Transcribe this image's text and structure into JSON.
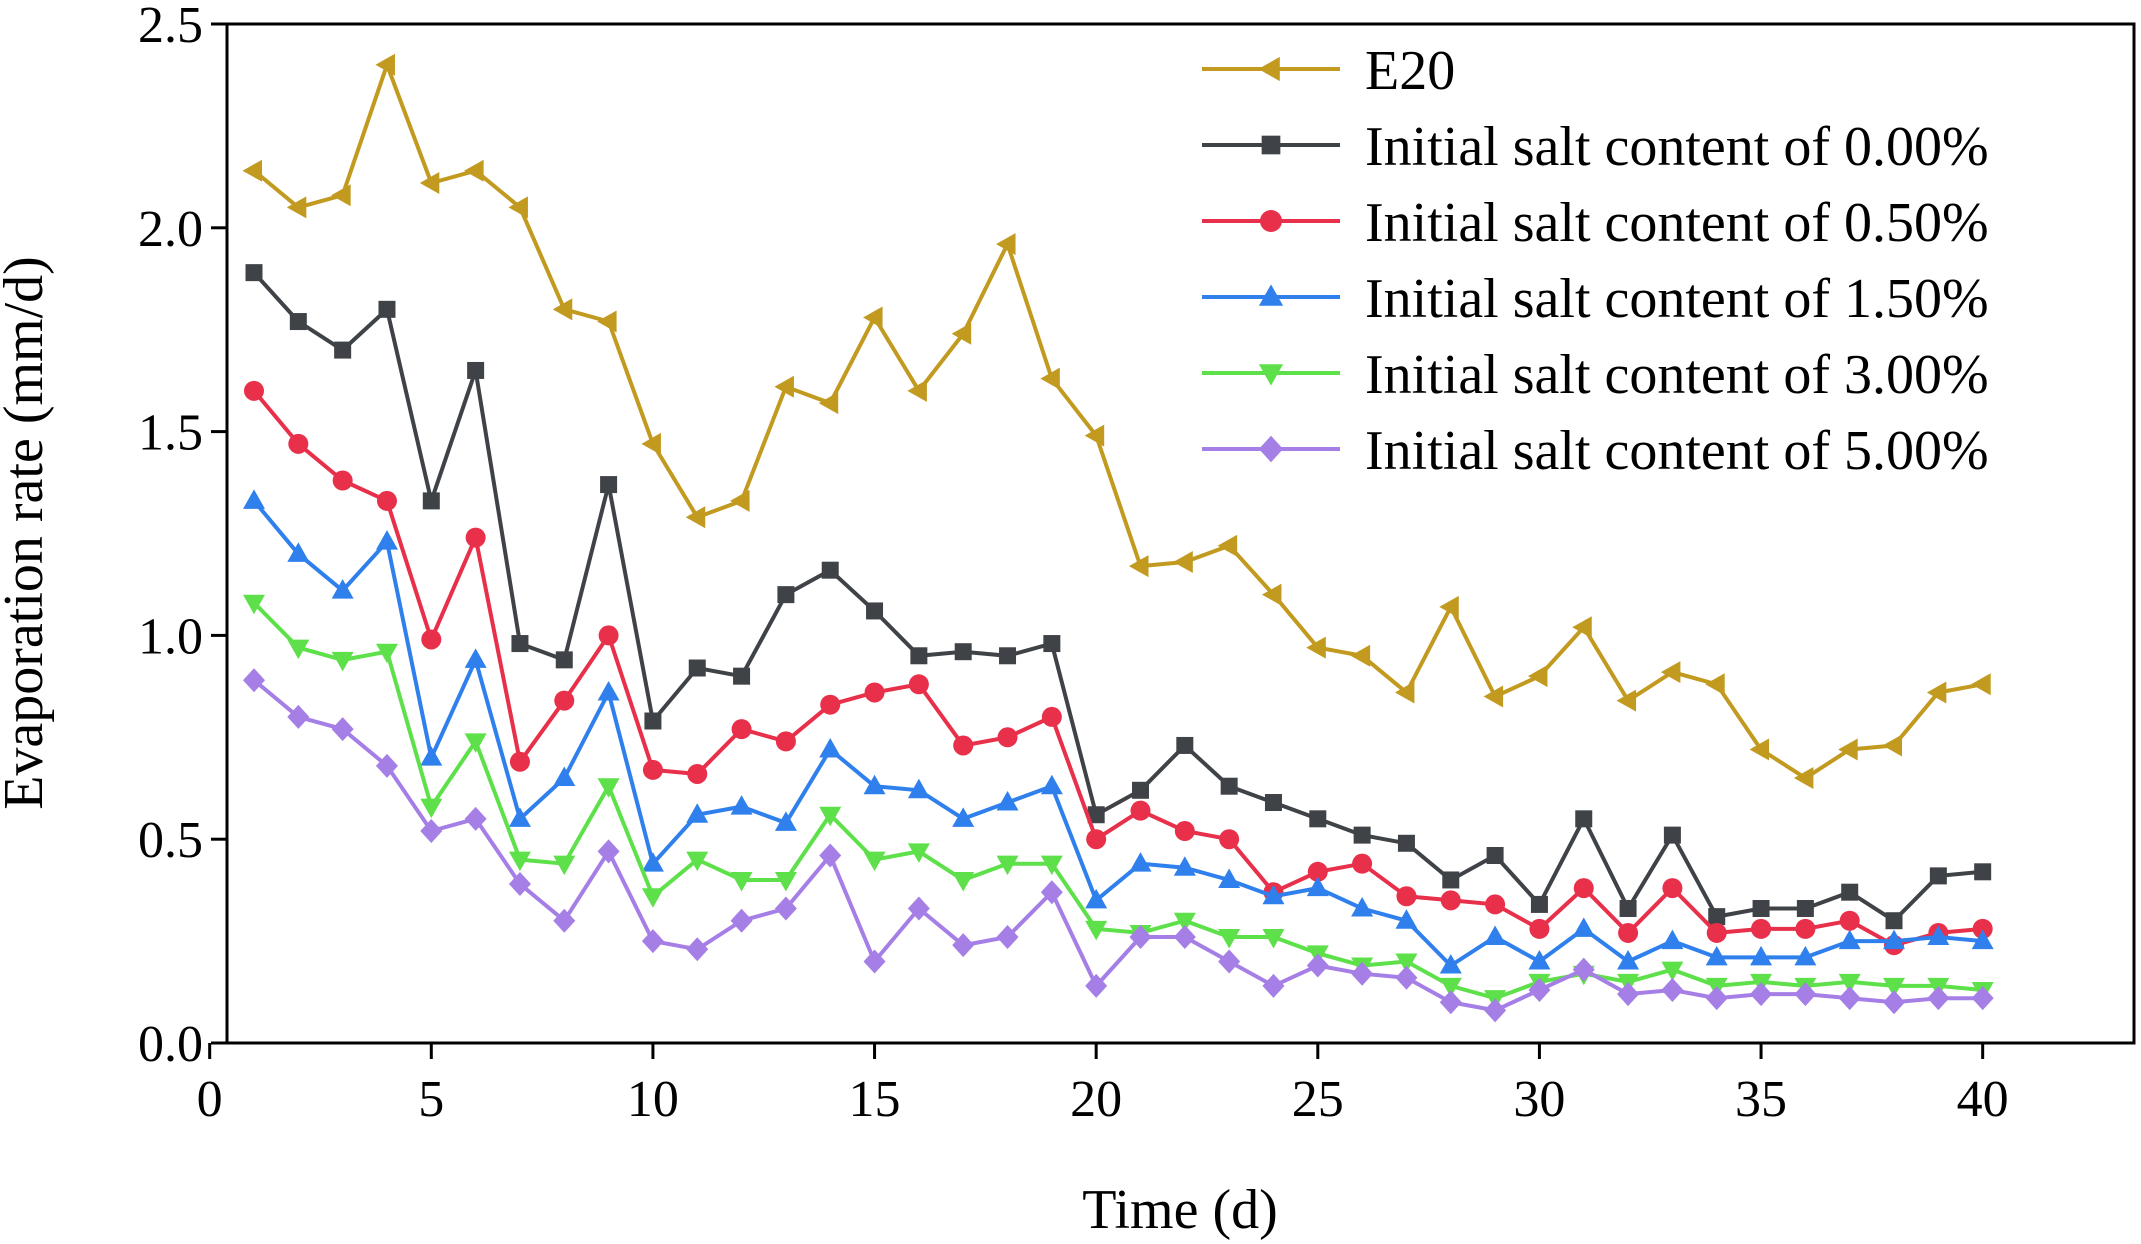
{
  "chart_data": {
    "type": "line",
    "title": "",
    "xlabel": "Time (d)",
    "ylabel": "Evaporation rate (mm/d)",
    "xlim": [
      0,
      42
    ],
    "ylim": [
      0.0,
      2.5
    ],
    "xticks": [
      0,
      5,
      10,
      15,
      20,
      25,
      30,
      35,
      40
    ],
    "xtick_labels": [
      "0",
      "5",
      "10",
      "15",
      "20",
      "25",
      "30",
      "35",
      "40"
    ],
    "yticks": [
      0.0,
      0.5,
      1.0,
      1.5,
      2.0,
      2.5
    ],
    "ytick_labels": [
      "0.0",
      "0.5",
      "1.0",
      "1.5",
      "2.0",
      "2.5"
    ],
    "legend_position": "top-right",
    "grid": false,
    "x": [
      1,
      2,
      3,
      4,
      5,
      6,
      7,
      8,
      9,
      10,
      11,
      12,
      13,
      14,
      15,
      16,
      17,
      18,
      19,
      20,
      21,
      22,
      23,
      24,
      25,
      26,
      27,
      28,
      29,
      30,
      31,
      32,
      33,
      34,
      35,
      36,
      37,
      38,
      39,
      40
    ],
    "series": [
      {
        "name": "E20",
        "color": "#c29a1f",
        "marker": "triangle-left",
        "values": [
          2.14,
          2.05,
          2.08,
          2.4,
          2.11,
          2.14,
          2.05,
          1.8,
          1.77,
          1.47,
          1.29,
          1.33,
          1.61,
          1.57,
          1.78,
          1.6,
          1.74,
          1.96,
          1.63,
          1.49,
          1.17,
          1.18,
          1.22,
          1.1,
          0.97,
          0.95,
          0.86,
          1.07,
          0.85,
          0.9,
          1.02,
          0.84,
          0.91,
          0.88,
          0.72,
          0.65,
          0.72,
          0.73,
          0.86,
          0.88
        ]
      },
      {
        "name": "Initial salt content of 0.00%",
        "color": "#3f4347",
        "marker": "square",
        "values": [
          1.89,
          1.77,
          1.7,
          1.8,
          1.33,
          1.65,
          0.98,
          0.94,
          1.37,
          0.79,
          0.92,
          0.9,
          1.1,
          1.16,
          1.06,
          0.95,
          0.96,
          0.95,
          0.98,
          0.56,
          0.62,
          0.73,
          0.63,
          0.59,
          0.55,
          0.51,
          0.49,
          0.4,
          0.46,
          0.34,
          0.55,
          0.33,
          0.51,
          0.31,
          0.33,
          0.33,
          0.37,
          0.3,
          0.41,
          0.42
        ]
      },
      {
        "name": "Initial salt content of 0.50%",
        "color": "#e8304a",
        "marker": "circle",
        "values": [
          1.6,
          1.47,
          1.38,
          1.33,
          0.99,
          1.24,
          0.69,
          0.84,
          1.0,
          0.67,
          0.66,
          0.77,
          0.74,
          0.83,
          0.86,
          0.88,
          0.73,
          0.75,
          0.8,
          0.5,
          0.57,
          0.52,
          0.5,
          0.37,
          0.42,
          0.44,
          0.36,
          0.35,
          0.34,
          0.28,
          0.38,
          0.27,
          0.38,
          0.27,
          0.28,
          0.28,
          0.3,
          0.24,
          0.27,
          0.28
        ]
      },
      {
        "name": "Initial salt content of 1.50%",
        "color": "#2f80ed",
        "marker": "triangle-up",
        "values": [
          1.33,
          1.2,
          1.11,
          1.23,
          0.7,
          0.94,
          0.55,
          0.65,
          0.86,
          0.44,
          0.56,
          0.58,
          0.54,
          0.72,
          0.63,
          0.62,
          0.55,
          0.59,
          0.63,
          0.35,
          0.44,
          0.43,
          0.4,
          0.36,
          0.38,
          0.33,
          0.3,
          0.19,
          0.26,
          0.2,
          0.28,
          0.2,
          0.25,
          0.21,
          0.21,
          0.21,
          0.25,
          0.25,
          0.26,
          0.25
        ]
      },
      {
        "name": "Initial salt content of 3.00%",
        "color": "#5ee04a",
        "marker": "triangle-down",
        "values": [
          1.08,
          0.97,
          0.94,
          0.96,
          0.58,
          0.74,
          0.45,
          0.44,
          0.63,
          0.36,
          0.45,
          0.4,
          0.4,
          0.56,
          0.45,
          0.47,
          0.4,
          0.44,
          0.44,
          0.28,
          0.27,
          0.3,
          0.26,
          0.26,
          0.22,
          0.19,
          0.2,
          0.14,
          0.11,
          0.15,
          0.17,
          0.15,
          0.18,
          0.14,
          0.15,
          0.14,
          0.15,
          0.14,
          0.14,
          0.13
        ]
      },
      {
        "name": "Initial salt content of 5.00%",
        "color": "#a57ee6",
        "marker": "diamond",
        "values": [
          0.89,
          0.8,
          0.77,
          0.68,
          0.52,
          0.55,
          0.39,
          0.3,
          0.47,
          0.25,
          0.23,
          0.3,
          0.33,
          0.46,
          0.2,
          0.33,
          0.24,
          0.26,
          0.37,
          0.14,
          0.26,
          0.26,
          0.2,
          0.14,
          0.19,
          0.17,
          0.16,
          0.1,
          0.08,
          0.13,
          0.18,
          0.12,
          0.13,
          0.11,
          0.12,
          0.12,
          0.11,
          0.1,
          0.11,
          0.11
        ]
      }
    ]
  }
}
